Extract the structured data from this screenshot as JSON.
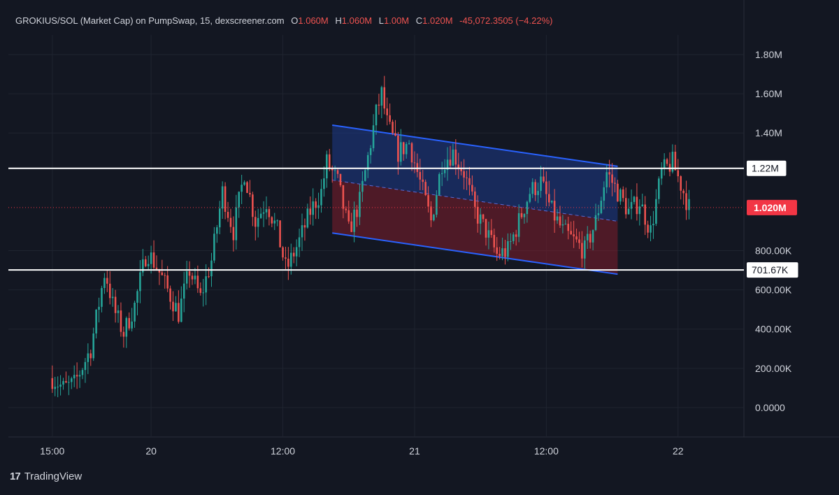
{
  "header": {
    "symbol": "GROKIUS/SOL (Market Cap) on PumpSwap, 15, dexscreener.com",
    "o_label": "O",
    "o_value": "1.060M",
    "h_label": "H",
    "h_value": "1.060M",
    "l_label": "L",
    "l_value": "1.00M",
    "c_label": "C",
    "c_value": "1.020M",
    "change": "-45,072.3505 (−4.22%)"
  },
  "footer": {
    "brand": "TradingView",
    "logo_text": "17"
  },
  "colors": {
    "background": "#131722",
    "up": "#26a69a",
    "down": "#ef5350",
    "grid": "#1f2430",
    "text": "#d1d4dc",
    "channel_line": "#2962ff",
    "channel_upper_fill": "#1e3a8a",
    "channel_lower_fill": "#7f1d2b",
    "hline": "#ffffff",
    "price_tag": "#f23645"
  },
  "chart_data": {
    "type": "candlestick",
    "y_ticks": [
      "0.0000",
      "200.00K",
      "400.00K",
      "600.00K",
      "800.00K",
      "1.40M",
      "1.60M",
      "1.80M"
    ],
    "y_tick_values": [
      0,
      200000,
      400000,
      600000,
      800000,
      1400000,
      1600000,
      1800000
    ],
    "x_ticks": [
      "15:00",
      "20",
      "12:00",
      "21",
      "12:00",
      "22"
    ],
    "x_tick_positions_hours": [
      15,
      24,
      36,
      48,
      60,
      72
    ],
    "ylim": [
      -150000,
      1900000
    ],
    "xlim_hours": [
      11,
      78
    ],
    "price_lines": [
      {
        "label": "1.22M",
        "value": 1220000
      },
      {
        "label": "701.67K",
        "value": 701670
      }
    ],
    "current_price": {
      "label": "1.020M",
      "value": 1020000
    },
    "channel": {
      "start_hour": 40.5,
      "end_hour": 66.5,
      "upper": [
        1440000,
        1230000
      ],
      "mid": [
        1160000,
        950000
      ],
      "lower": [
        890000,
        680000
      ]
    },
    "price_path": [
      [
        15.0,
        150000
      ],
      [
        16.0,
        100000
      ],
      [
        17.0,
        120000
      ],
      [
        18.5,
        300000
      ],
      [
        19.8,
        700000
      ],
      [
        20.6,
        500000
      ],
      [
        21.5,
        380000
      ],
      [
        22.5,
        520000
      ],
      [
        23.6,
        800000
      ],
      [
        24.5,
        720000
      ],
      [
        25.5,
        600000
      ],
      [
        26.5,
        480000
      ],
      [
        27.5,
        700000
      ],
      [
        28.5,
        560000
      ],
      [
        29.5,
        750000
      ],
      [
        30.5,
        1100000
      ],
      [
        31.5,
        900000
      ],
      [
        32.5,
        1200000
      ],
      [
        33.5,
        950000
      ],
      [
        34.5,
        1050000
      ],
      [
        35.5,
        900000
      ],
      [
        36.3,
        700000
      ],
      [
        37.5,
        850000
      ],
      [
        38.5,
        1000000
      ],
      [
        39.5,
        1100000
      ],
      [
        40.0,
        1250000
      ],
      [
        41.0,
        1150000
      ],
      [
        42.0,
        900000
      ],
      [
        43.0,
        1050000
      ],
      [
        44.5,
        1500000
      ],
      [
        45.0,
        1600000
      ],
      [
        45.5,
        1450000
      ],
      [
        46.5,
        1300000
      ],
      [
        47.5,
        1350000
      ],
      [
        48.5,
        1150000
      ],
      [
        49.5,
        950000
      ],
      [
        50.5,
        1250000
      ],
      [
        51.5,
        1300000
      ],
      [
        52.5,
        1200000
      ],
      [
        53.5,
        1000000
      ],
      [
        54.5,
        900000
      ],
      [
        55.5,
        780000
      ],
      [
        56.5,
        800000
      ],
      [
        57.5,
        950000
      ],
      [
        58.5,
        1100000
      ],
      [
        59.5,
        1150000
      ],
      [
        60.5,
        1000000
      ],
      [
        61.5,
        900000
      ],
      [
        62.5,
        850000
      ],
      [
        63.5,
        800000
      ],
      [
        64.5,
        950000
      ],
      [
        65.5,
        1200000
      ],
      [
        66.5,
        1100000
      ],
      [
        67.5,
        1000000
      ],
      [
        68.5,
        1050000
      ],
      [
        69.5,
        900000
      ],
      [
        70.5,
        1200000
      ],
      [
        71.5,
        1250000
      ],
      [
        72.5,
        1100000
      ],
      [
        73.0,
        1020000
      ]
    ]
  }
}
